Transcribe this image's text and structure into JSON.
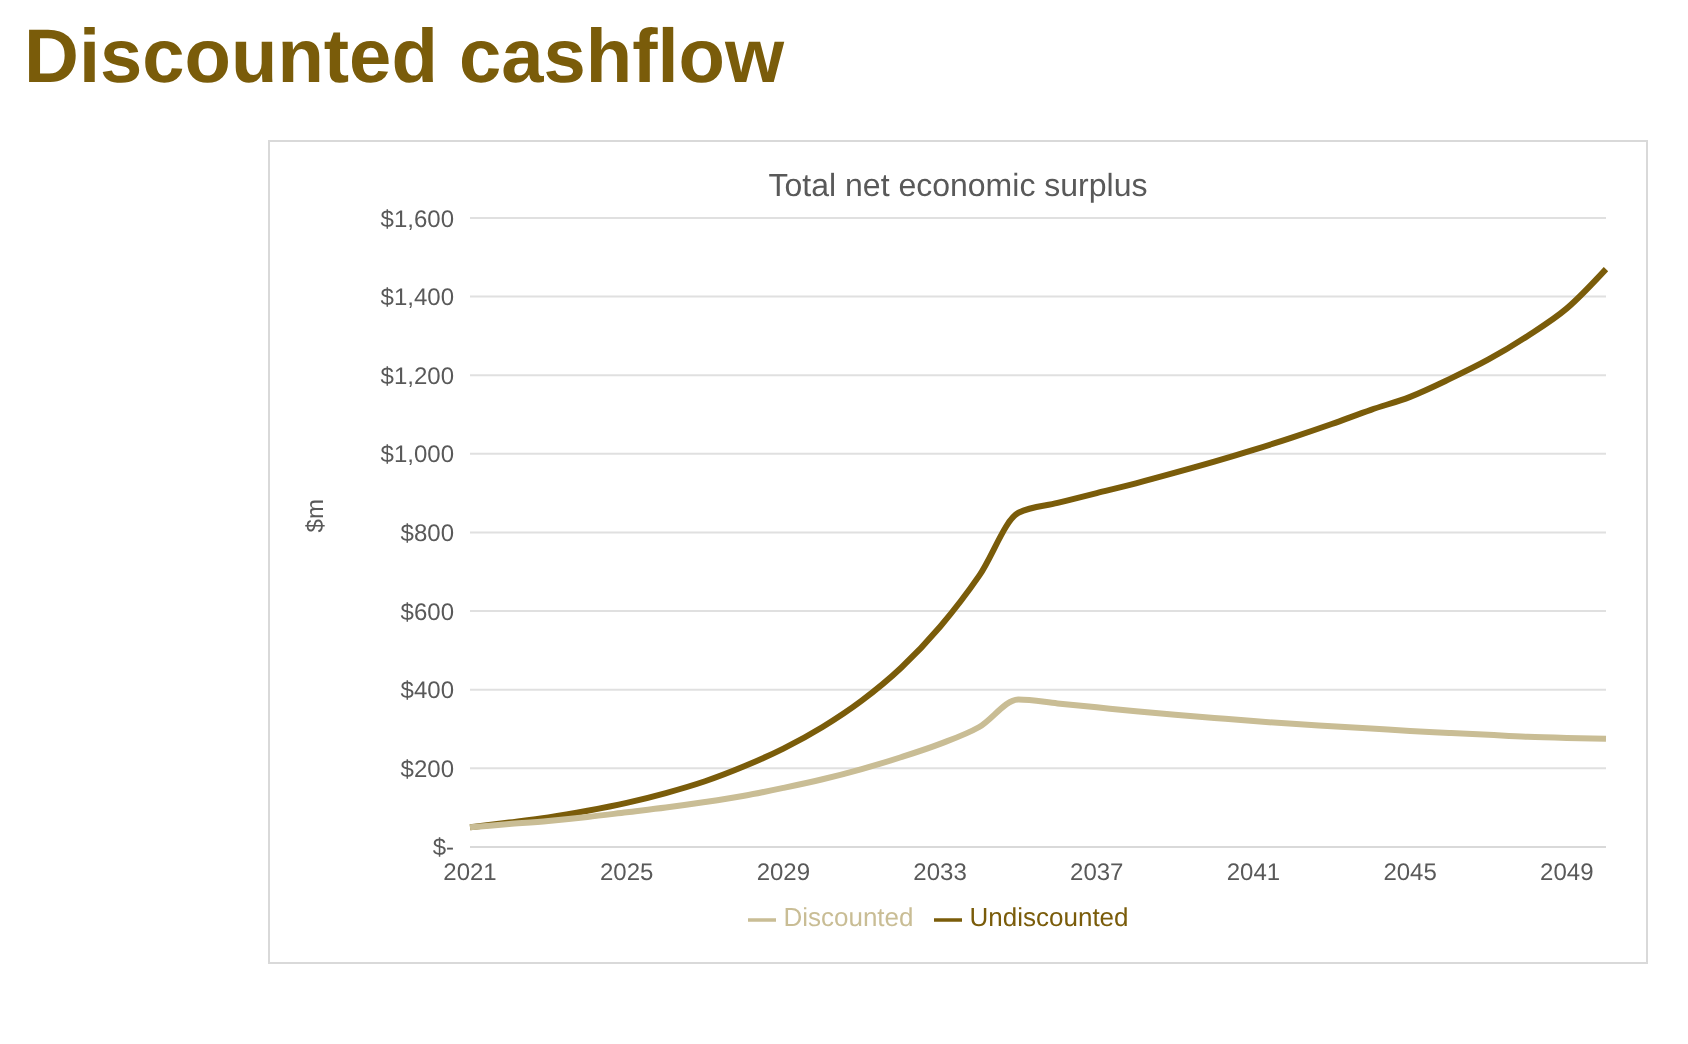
{
  "chart_data": {
    "type": "line",
    "title": "Discounted cashflow",
    "subtitle": "Total net economic surplus",
    "ylabel": "$m",
    "categories": [
      "2021",
      null,
      null,
      null,
      "2025",
      null,
      null,
      null,
      "2029",
      null,
      null,
      null,
      "2033",
      null,
      null,
      null,
      "2037",
      null,
      null,
      null,
      "2041",
      null,
      null,
      null,
      "2045",
      null,
      null,
      null,
      "2049",
      null
    ],
    "series": [
      {
        "name": "Undiscounted",
        "color": "#7a5c0a",
        "values": [
          50,
          62,
          75,
          92,
          112,
          137,
          167,
          205,
          250,
          305,
          372,
          455,
          560,
          690,
          850,
          875,
          900,
          925,
          952,
          980,
          1010,
          1042,
          1076,
          1112,
          1145,
          1190,
          1240,
          1300,
          1370,
          1470
        ]
      },
      {
        "name": "Discounted",
        "color": "#c9bd95",
        "values": [
          50,
          58,
          66,
          76,
          88,
          100,
          114,
          130,
          150,
          172,
          198,
          228,
          262,
          305,
          375,
          365,
          355,
          345,
          336,
          328,
          320,
          313,
          307,
          301,
          295,
          290,
          285,
          280,
          277,
          275
        ]
      }
    ],
    "ylim": [
      0,
      1600
    ],
    "yticks": [
      {
        "value": 0,
        "label": "$-"
      },
      {
        "value": 200,
        "label": "$200"
      },
      {
        "value": 400,
        "label": "$400"
      },
      {
        "value": 600,
        "label": "$600"
      },
      {
        "value": 800,
        "label": "$800"
      },
      {
        "value": 1000,
        "label": "$1,000"
      },
      {
        "value": 1200,
        "label": "$1,200"
      },
      {
        "value": 1400,
        "label": "$1,400"
      },
      {
        "value": 1600,
        "label": "$1,600"
      }
    ],
    "grid": "y",
    "legend": "bottom",
    "marker": "none",
    "line_style": "solid"
  }
}
